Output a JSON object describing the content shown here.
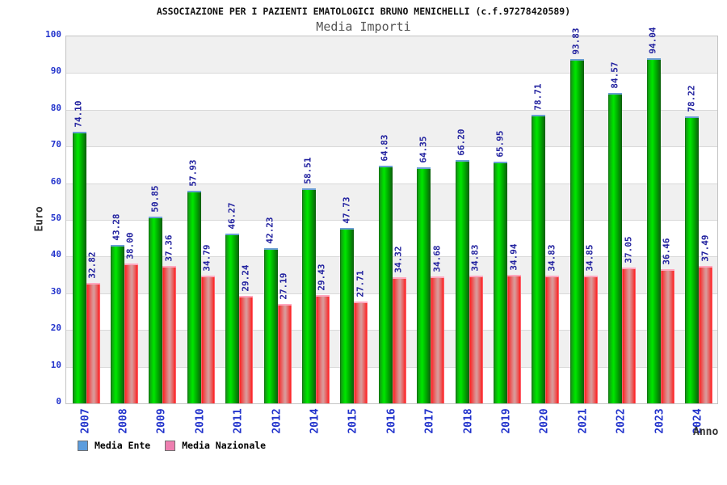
{
  "title": "ASSOCIAZIONE PER I PAZIENTI EMATOLOGICI BRUNO MENICHELLI (c.f.97278420589)",
  "subtitle": "Media Importi",
  "y_axis": {
    "label": "Euro",
    "ticks": [
      0,
      10,
      20,
      30,
      40,
      50,
      60,
      70,
      80,
      90,
      100
    ]
  },
  "x_axis": {
    "label": "Anno"
  },
  "legend": [
    {
      "label": "Media Ente",
      "swatch_color": "#5d9ddd"
    },
    {
      "label": "Media Nazionale",
      "swatch_color": "#ee7fb0"
    }
  ],
  "colors": {
    "axis_tick": "#2233cc",
    "value_label": "#1f1f9e",
    "title": "#111111",
    "subtitle": "#555555",
    "axis_name": "#333333",
    "band_gray": "#f0f0f0",
    "band_white": "#ffffff",
    "grid": "#d9d9d9",
    "bar_green": "#00cc00",
    "bar_red": "#ff3333",
    "plot_border": "#c3c3c3"
  },
  "chart_data": {
    "type": "bar",
    "title": "Media Importi",
    "xlabel": "Anno",
    "ylabel": "Euro",
    "ylim": [
      0,
      100
    ],
    "grid": true,
    "legend_position": "bottom-left",
    "categories": [
      "2007",
      "2008",
      "2009",
      "2010",
      "2011",
      "2012",
      "2014",
      "2015",
      "2016",
      "2017",
      "2018",
      "2019",
      "2020",
      "2021",
      "2022",
      "2023",
      "2024"
    ],
    "series": [
      {
        "name": "Media Ente",
        "bar_color": "green",
        "values": [
          74.1,
          43.28,
          50.85,
          57.93,
          46.27,
          42.23,
          58.51,
          47.73,
          64.83,
          64.35,
          66.2,
          65.95,
          78.71,
          93.83,
          84.57,
          94.04,
          78.22
        ],
        "labels": [
          "74.10",
          "43.28",
          "50.85",
          "57.93",
          "46.27",
          "42.23",
          "58.51",
          "47.73",
          "64.83",
          "64.35",
          "66.20",
          "65.95",
          "78.71",
          "93.83",
          "84.57",
          "94.04",
          "78.22"
        ]
      },
      {
        "name": "Media Nazionale",
        "bar_color": "red",
        "values": [
          32.82,
          38.0,
          37.36,
          34.79,
          29.24,
          27.19,
          29.43,
          27.71,
          34.32,
          34.68,
          34.83,
          34.94,
          34.83,
          34.85,
          37.05,
          36.46,
          37.49
        ],
        "labels": [
          "32.82",
          "38.00",
          "37.36",
          "34.79",
          "29.24",
          "27.19",
          "29.43",
          "27.71",
          "34.32",
          "34.68",
          "34.83",
          "34.94",
          "34.83",
          "34.85",
          "37.05",
          "36.46",
          "37.49"
        ]
      }
    ]
  }
}
